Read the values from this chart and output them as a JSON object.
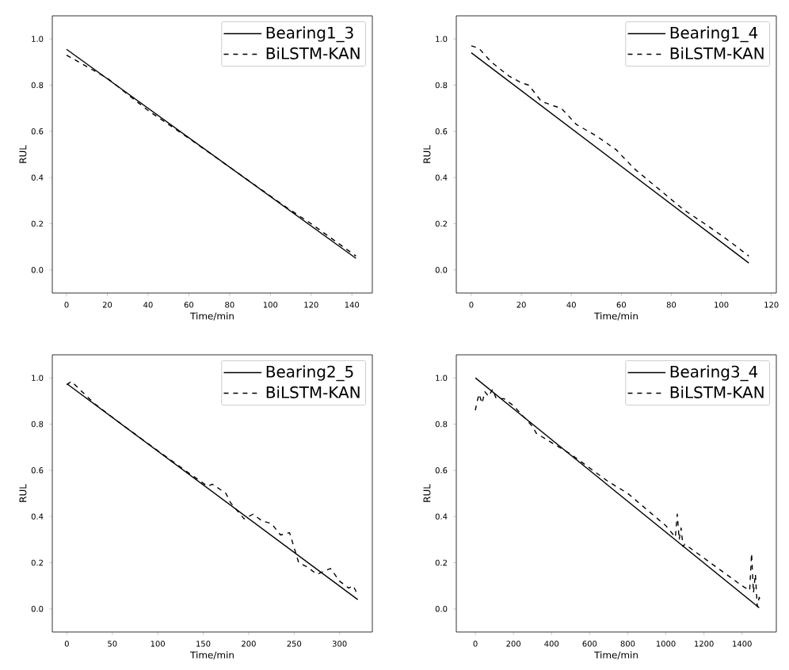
{
  "chart_data": [
    {
      "type": "line",
      "xlabel": "Time/min",
      "ylabel": "RUL",
      "xlim": [
        -7,
        150
      ],
      "ylim": [
        -0.1,
        1.1
      ],
      "xticks": [
        0,
        20,
        40,
        60,
        80,
        100,
        120,
        140
      ],
      "yticks": [
        {
          "value": 0,
          "label": "0.0"
        },
        {
          "value": 0.2,
          "label": "0.2"
        },
        {
          "value": 0.4,
          "label": "0.4"
        },
        {
          "value": 0.6,
          "label": "0.6"
        },
        {
          "value": 0.8,
          "label": "0.8"
        },
        {
          "value": 1,
          "label": "1.0"
        }
      ],
      "legend": "top right",
      "series": [
        {
          "name": "Bearing1_3",
          "color": "#000000",
          "line_style": "solid",
          "x": [
            0,
            142
          ],
          "values": [
            0.955,
            0.05
          ]
        },
        {
          "name": "BiLSTM-KAN",
          "color": "#000000",
          "line_style": "dashed",
          "x": [
            0,
            20,
            40,
            60,
            80,
            100,
            108,
            120,
            142
          ],
          "values": [
            0.93,
            0.83,
            0.69,
            0.57,
            0.445,
            0.32,
            0.27,
            0.2,
            0.06
          ]
        }
      ]
    },
    {
      "type": "line",
      "xlabel": "Time/min",
      "ylabel": "RUL",
      "xlim": [
        -6,
        122
      ],
      "ylim": [
        -0.1,
        1.1
      ],
      "xticks": [
        0,
        20,
        40,
        60,
        80,
        100,
        120
      ],
      "yticks": [
        {
          "value": 0,
          "label": "0.0"
        },
        {
          "value": 0.2,
          "label": "0.2"
        },
        {
          "value": 0.4,
          "label": "0.4"
        },
        {
          "value": 0.6,
          "label": "0.6"
        },
        {
          "value": 0.8,
          "label": "0.8"
        },
        {
          "value": 1,
          "label": "1.0"
        }
      ],
      "legend": "top right",
      "series": [
        {
          "name": "Bearing1_4",
          "color": "#000000",
          "line_style": "solid",
          "x": [
            0,
            111
          ],
          "values": [
            0.94,
            0.03
          ]
        },
        {
          "name": "BiLSTM-KAN",
          "color": "#000000",
          "line_style": "dashed",
          "x": [
            0,
            3,
            8,
            15,
            20,
            23,
            28,
            33,
            36,
            42,
            50,
            58,
            65,
            75,
            85,
            92,
            100,
            105,
            111
          ],
          "values": [
            0.97,
            0.96,
            0.9,
            0.84,
            0.81,
            0.8,
            0.73,
            0.71,
            0.7,
            0.63,
            0.58,
            0.52,
            0.44,
            0.35,
            0.26,
            0.21,
            0.15,
            0.11,
            0.06
          ]
        }
      ]
    },
    {
      "type": "line",
      "xlabel": "Time/min",
      "ylabel": "RUL",
      "xlim": [
        -16,
        336
      ],
      "ylim": [
        -0.1,
        1.1
      ],
      "xticks": [
        0,
        50,
        100,
        150,
        200,
        250,
        300
      ],
      "yticks": [
        {
          "value": 0,
          "label": "0.0"
        },
        {
          "value": 0.2,
          "label": "0.2"
        },
        {
          "value": 0.4,
          "label": "0.4"
        },
        {
          "value": 0.6,
          "label": "0.6"
        },
        {
          "value": 0.8,
          "label": "0.8"
        },
        {
          "value": 1,
          "label": "1.0"
        }
      ],
      "legend": "top right",
      "series": [
        {
          "name": "Bearing2_5",
          "color": "#000000",
          "line_style": "solid",
          "x": [
            0,
            320
          ],
          "values": [
            0.975,
            0.04
          ]
        },
        {
          "name": "BiLSTM-KAN",
          "color": "#000000",
          "line_style": "dashed",
          "x": [
            0,
            5,
            30,
            60,
            100,
            130,
            155,
            160,
            175,
            180,
            195,
            205,
            215,
            225,
            235,
            245,
            255,
            265,
            275,
            290,
            300,
            310,
            315,
            320
          ],
          "values": [
            0.97,
            0.985,
            0.89,
            0.8,
            0.685,
            0.6,
            0.53,
            0.54,
            0.5,
            0.46,
            0.39,
            0.41,
            0.38,
            0.37,
            0.32,
            0.33,
            0.2,
            0.18,
            0.15,
            0.175,
            0.12,
            0.09,
            0.1,
            0.06
          ]
        }
      ]
    },
    {
      "type": "line",
      "xlabel": "Time/min",
      "ylabel": "RUL",
      "xlim": [
        -100,
        1580
      ],
      "ylim": [
        -0.1,
        1.1
      ],
      "xticks": [
        0,
        200,
        400,
        600,
        800,
        1000,
        1200,
        1400
      ],
      "yticks": [
        {
          "value": 0,
          "label": "0.0"
        },
        {
          "value": 0.2,
          "label": "0.2"
        },
        {
          "value": 0.4,
          "label": "0.4"
        },
        {
          "value": 0.6,
          "label": "0.6"
        },
        {
          "value": 0.8,
          "label": "0.8"
        },
        {
          "value": 1,
          "label": "1.0"
        }
      ],
      "legend": "top right",
      "series": [
        {
          "name": "Bearing3_4",
          "color": "#000000",
          "line_style": "solid",
          "x": [
            0,
            1490
          ],
          "values": [
            1.0,
            0.005
          ]
        },
        {
          "name": "BiLSTM-KAN",
          "color": "#000000",
          "line_style": "dashed",
          "x": [
            0,
            10,
            20,
            35,
            50,
            70,
            90,
            110,
            150,
            200,
            300,
            320,
            400,
            500,
            600,
            700,
            800,
            900,
            1000,
            1050,
            1060,
            1070,
            1080,
            1090,
            1100,
            1200,
            1300,
            1400,
            1440,
            1450,
            1460,
            1470,
            1480,
            1490,
            1500
          ],
          "values": [
            0.86,
            0.9,
            0.93,
            0.89,
            0.94,
            0.92,
            0.95,
            0.91,
            0.91,
            0.88,
            0.79,
            0.76,
            0.72,
            0.67,
            0.61,
            0.55,
            0.5,
            0.43,
            0.36,
            0.31,
            0.41,
            0.3,
            0.35,
            0.27,
            0.28,
            0.22,
            0.16,
            0.1,
            0.08,
            0.24,
            0.07,
            0.15,
            0.01,
            0.05,
            0.03
          ]
        }
      ]
    }
  ]
}
